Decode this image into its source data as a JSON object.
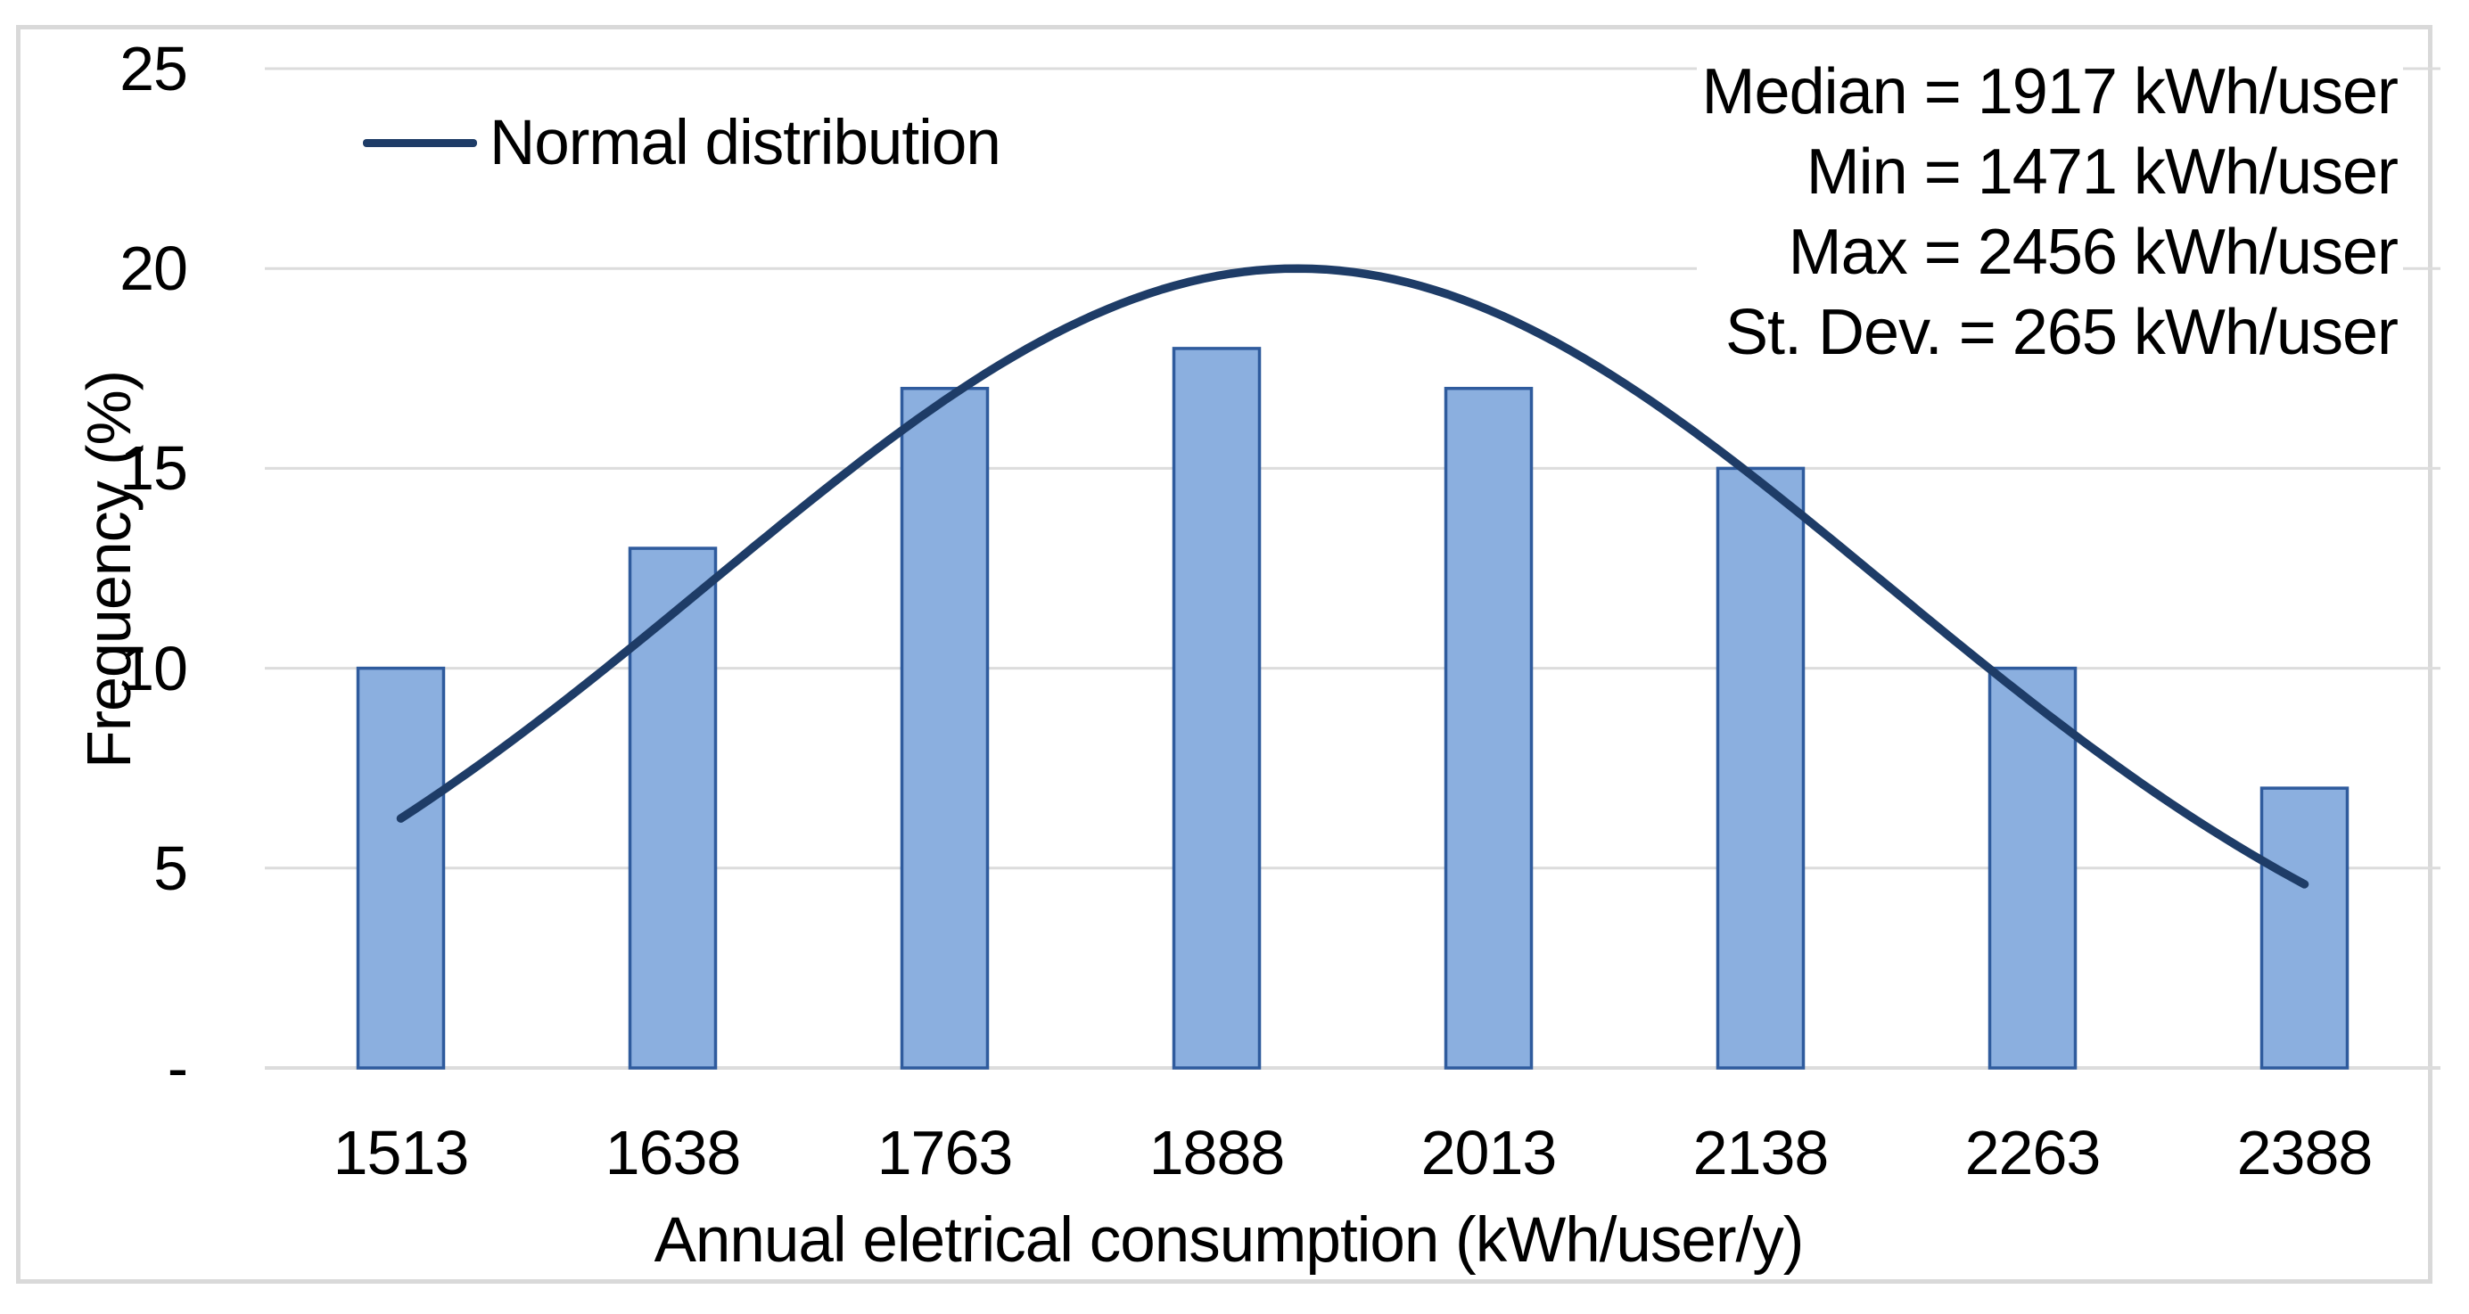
{
  "legend": {
    "label": "Normal distribution"
  },
  "stats": {
    "lines": [
      "Median = 1917 kWh/user",
      "Min = 1471 kWh/user",
      "Max = 2456 kWh/user",
      "St. Dev. = 265 kWh/user"
    ]
  },
  "chart_data": {
    "type": "bar",
    "categories": [
      "1513",
      "1638",
      "1763",
      "1888",
      "2013",
      "2138",
      "2263",
      "2388"
    ],
    "bin_width": 125,
    "series": [
      {
        "name": "Frequency (%)",
        "type": "bar",
        "values": [
          10,
          13,
          17,
          18,
          17,
          15,
          10,
          7
        ]
      },
      {
        "name": "Normal distribution",
        "type": "line",
        "gaussian": {
          "mean": 1925,
          "sigma": 270,
          "peak": 20
        },
        "x_range": [
          1513,
          2388
        ]
      }
    ],
    "xlabel": "Annual eletrical consumption (kWh/user/y)",
    "ylabel": "Frequency (%)",
    "ylim": [
      0,
      25
    ],
    "y_ticks": [
      {
        "value": 25,
        "label": "25"
      },
      {
        "value": 20,
        "label": "20"
      },
      {
        "value": 15,
        "label": "15"
      },
      {
        "value": 10,
        "label": "10"
      },
      {
        "value": 5,
        "label": "5"
      },
      {
        "value": 0,
        "label": "-"
      }
    ],
    "grid": "horizontal",
    "legend_position": "top-left-inside",
    "annotations": [
      "Median = 1917 kWh/user",
      "Min = 1471 kWh/user",
      "Max = 2456 kWh/user",
      "St. Dev. = 265 kWh/user"
    ]
  },
  "colors": {
    "bar_fill": "#8BAFDF",
    "bar_border": "#2F5B9D",
    "curve": "#1E3C67",
    "gridline": "#DCDCDC",
    "frame": "#D9D9D9",
    "text": "#000000",
    "background": "#FFFFFF"
  }
}
